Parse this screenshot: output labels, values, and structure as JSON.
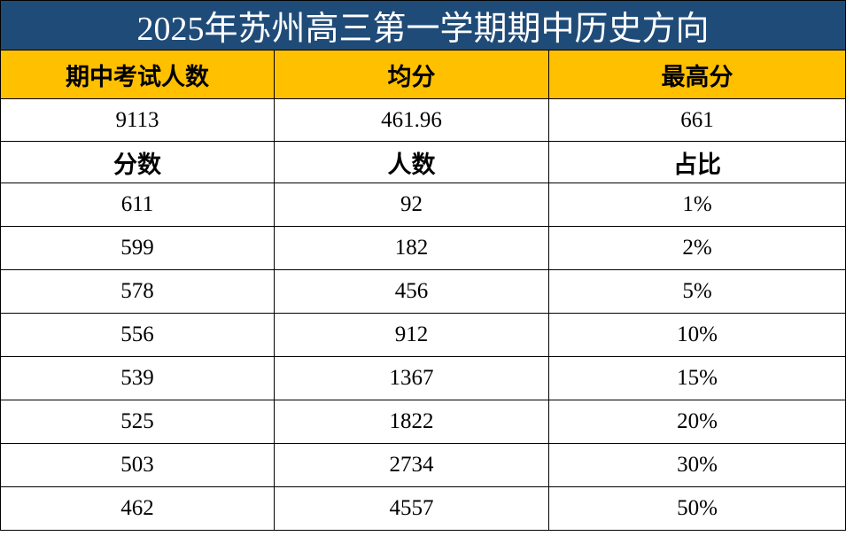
{
  "title": "2025年苏州高三第一学期期中历史方向",
  "summary": {
    "headers": [
      "期中考试人数",
      "均分",
      "最高分"
    ],
    "values": [
      "9113",
      "461.96",
      "661"
    ]
  },
  "detail": {
    "headers": [
      "分数",
      "人数",
      "占比"
    ],
    "rows": [
      [
        "611",
        "92",
        "1%"
      ],
      [
        "599",
        "182",
        "2%"
      ],
      [
        "578",
        "456",
        "5%"
      ],
      [
        "556",
        "912",
        "10%"
      ],
      [
        "539",
        "1367",
        "15%"
      ],
      [
        "525",
        "1822",
        "20%"
      ],
      [
        "503",
        "2734",
        "30%"
      ],
      [
        "462",
        "4557",
        "50%"
      ]
    ]
  }
}
